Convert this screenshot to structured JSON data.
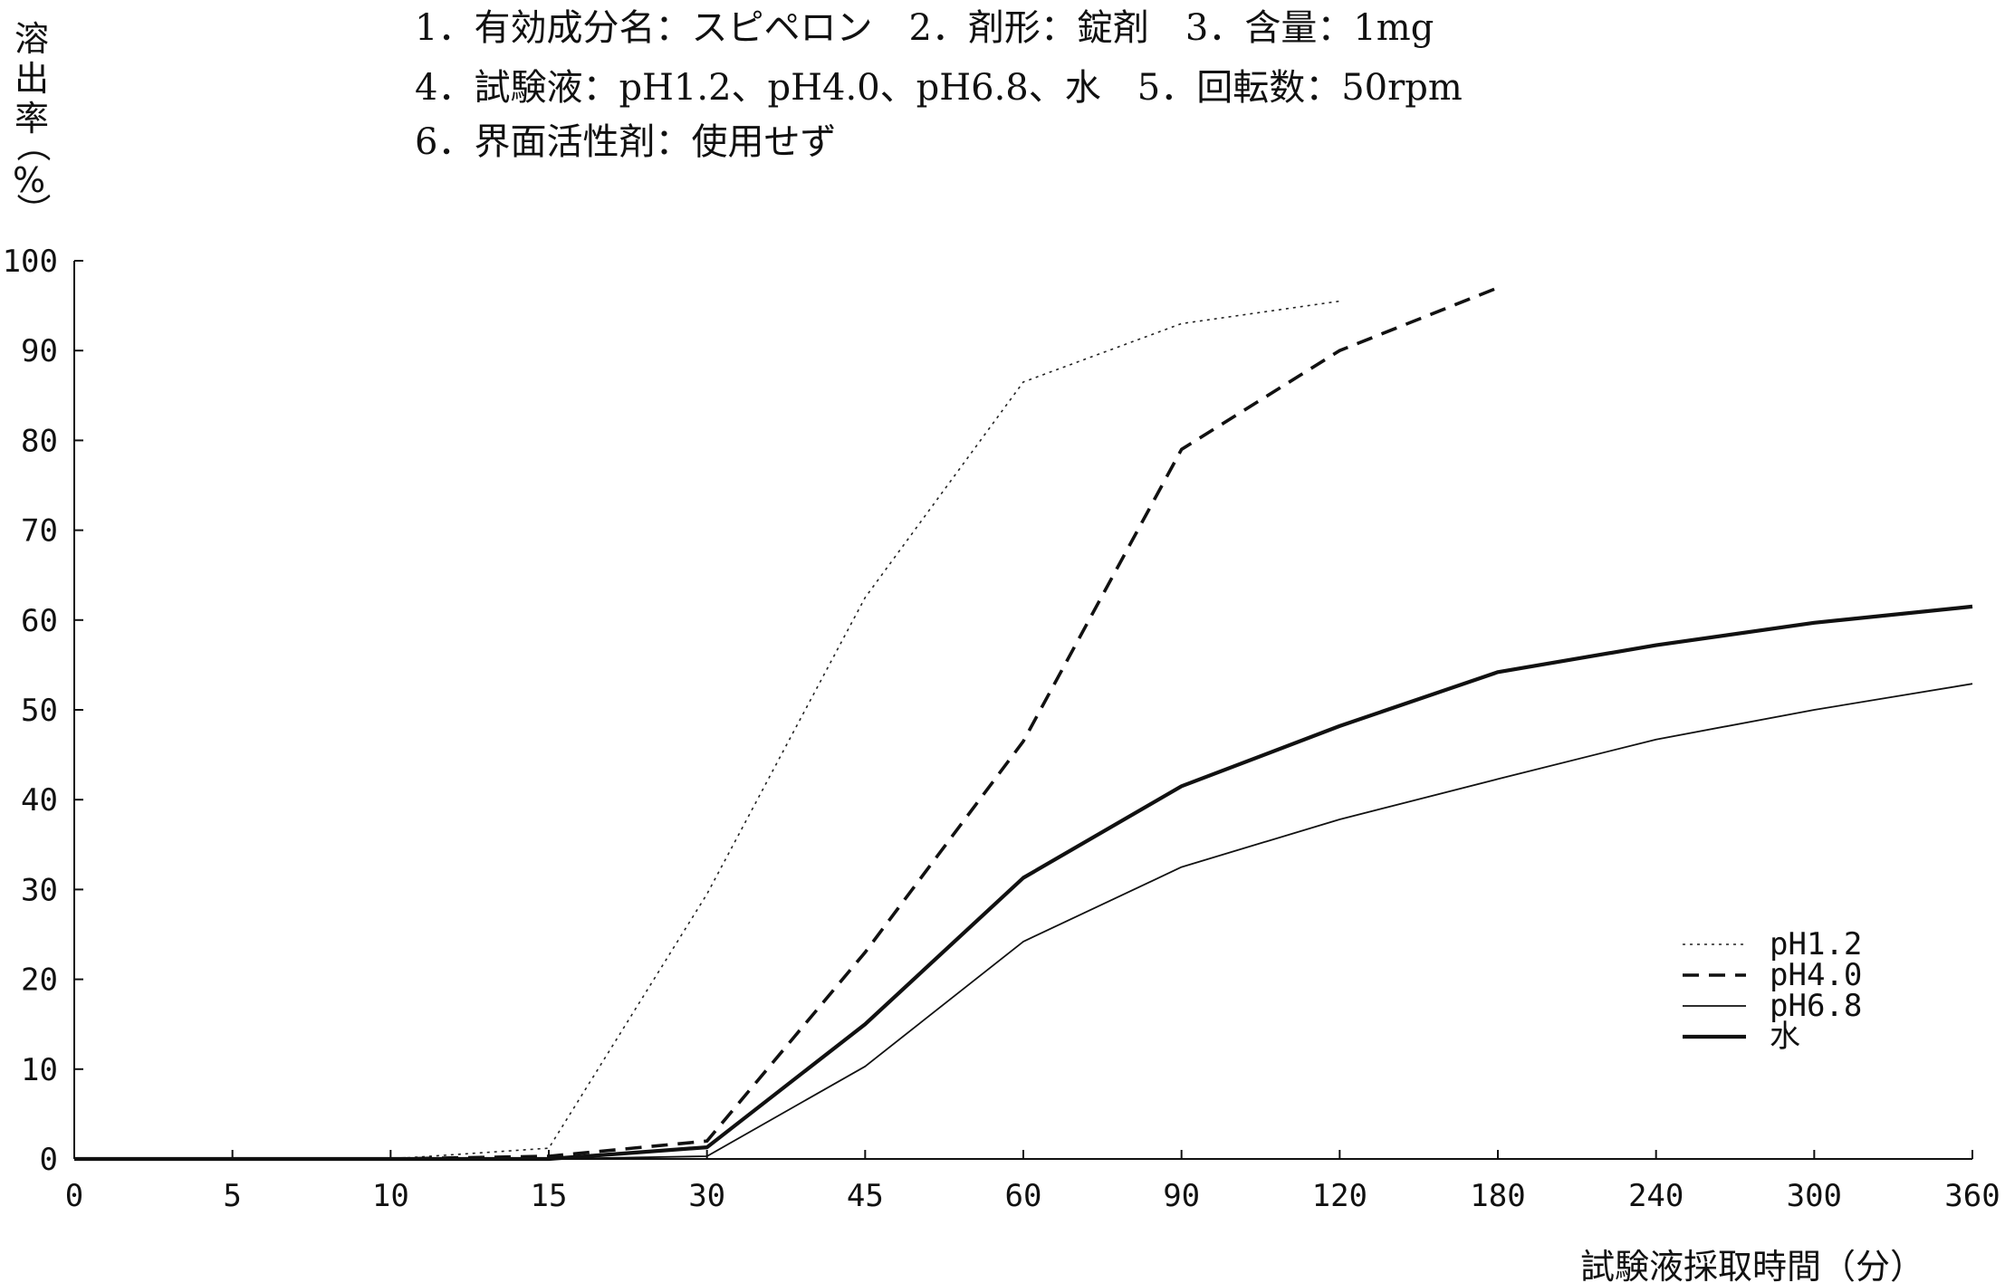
{
  "header": {
    "lines": [
      "1．有効成分名：スピペロン　2．剤形：錠剤　3．含量：1mg",
      "4．試験液：pH1.2、pH4.0、pH6.8、水　5．回転数：50rpm",
      "6．界面活性剤：使用せず"
    ]
  },
  "chart_data": {
    "type": "line",
    "title": "",
    "ylabel": [
      "溶",
      "出",
      "率",
      "（",
      "%",
      "）"
    ],
    "xlabel": "試験液採取時間（分）",
    "categories": [
      "0",
      "5",
      "10",
      "15",
      "30",
      "45",
      "60",
      "90",
      "120",
      "180",
      "240",
      "300",
      "360"
    ],
    "ylim": [
      0,
      100
    ],
    "yticks": [
      0,
      10,
      20,
      30,
      40,
      50,
      60,
      70,
      80,
      90,
      100
    ],
    "grid": false,
    "legend_position": "bottom-right",
    "series": [
      {
        "name": "pH1.2",
        "style": "dotted",
        "color": "#222222",
        "values": [
          0,
          0,
          0,
          1.2,
          29.5,
          62.5,
          86.5,
          93,
          95.5,
          null,
          null,
          null,
          null
        ]
      },
      {
        "name": "pH4.0",
        "style": "dashed",
        "color": "#111111",
        "values": [
          0,
          0,
          0,
          0.3,
          2,
          23,
          46.5,
          79,
          90,
          97,
          null,
          null,
          null
        ]
      },
      {
        "name": "pH6.8",
        "style": "thin",
        "color": "#111111",
        "values": [
          0,
          0,
          0,
          0,
          0.3,
          10.3,
          24.2,
          32.5,
          37.8,
          42.3,
          46.7,
          50,
          52.9
        ]
      },
      {
        "name": "水",
        "style": "thick",
        "color": "#111111",
        "values": [
          0,
          0,
          0,
          0,
          1.3,
          15,
          31.3,
          41.5,
          48.2,
          54.2,
          57.2,
          59.7,
          61.5
        ]
      }
    ]
  }
}
